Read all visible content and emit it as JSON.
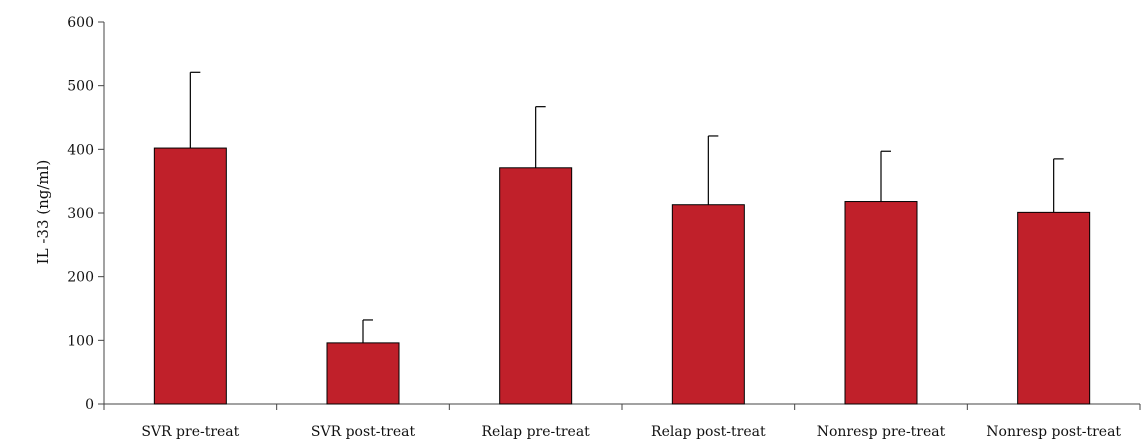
{
  "chart_data": {
    "type": "bar",
    "title": "",
    "xlabel": "",
    "ylabel": "IL  -33 (ng/ml)",
    "ylim": [
      0,
      600
    ],
    "yticks": [
      0,
      100,
      200,
      300,
      400,
      500,
      600
    ],
    "grid": false,
    "legend": "none",
    "categories": [
      "SVR pre-treat",
      "SVR post-treat",
      "Relap pre-treat",
      "Relap post-treat",
      "Nonresp pre-treat",
      "Nonresp post-treat"
    ],
    "values": [
      402,
      96,
      371,
      313,
      318,
      301
    ],
    "error_upper": [
      521,
      132,
      467,
      421,
      397,
      385
    ],
    "bar_color": "#c0202a",
    "bar_stroke": "#000000"
  }
}
